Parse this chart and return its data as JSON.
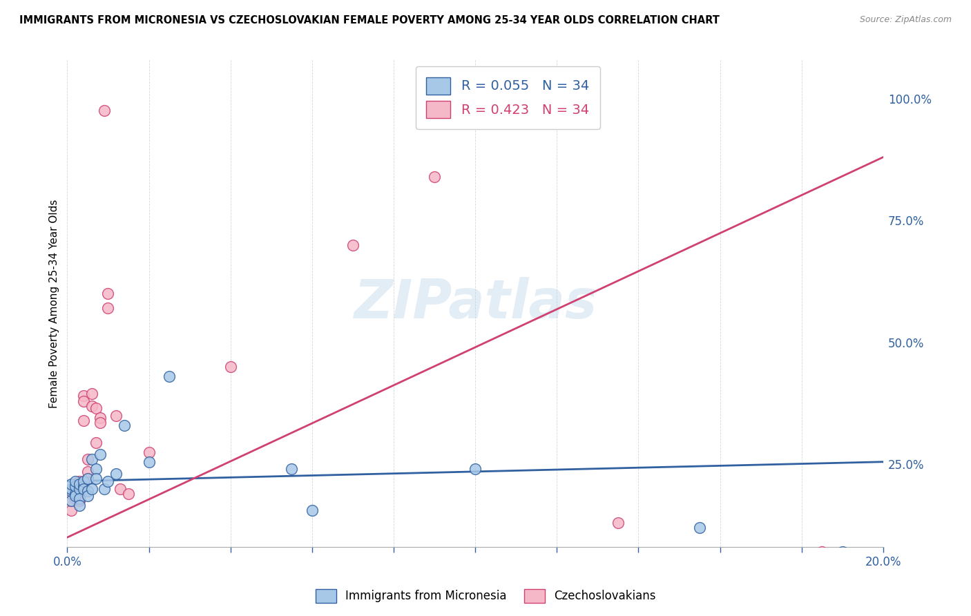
{
  "title": "IMMIGRANTS FROM MICRONESIA VS CZECHOSLOVAKIAN FEMALE POVERTY AMONG 25-34 YEAR OLDS CORRELATION CHART",
  "source": "Source: ZipAtlas.com",
  "ylabel": "Female Poverty Among 25-34 Year Olds",
  "legend1_label": "Immigrants from Micronesia",
  "legend2_label": "Czechoslovakians",
  "r1": 0.055,
  "n1": 34,
  "r2": 0.423,
  "n2": 34,
  "blue_color": "#a8c8e8",
  "pink_color": "#f5b8c8",
  "blue_line_color": "#3060a0",
  "pink_line_color": "#d04070",
  "watermark": "ZIPatlas",
  "blue_x": [
    0.001,
    0.001,
    0.001,
    0.001,
    0.002,
    0.002,
    0.002,
    0.002,
    0.003,
    0.003,
    0.003,
    0.003,
    0.004,
    0.004,
    0.004,
    0.005,
    0.005,
    0.005,
    0.006,
    0.006,
    0.007,
    0.007,
    0.008,
    0.009,
    0.01,
    0.012,
    0.014,
    0.02,
    0.025,
    0.055,
    0.06,
    0.1,
    0.155,
    0.19
  ],
  "blue_y": [
    0.195,
    0.2,
    0.21,
    0.175,
    0.19,
    0.205,
    0.185,
    0.215,
    0.2,
    0.21,
    0.18,
    0.165,
    0.205,
    0.215,
    0.2,
    0.22,
    0.195,
    0.185,
    0.26,
    0.2,
    0.24,
    0.22,
    0.27,
    0.2,
    0.215,
    0.23,
    0.33,
    0.255,
    0.43,
    0.24,
    0.155,
    0.24,
    0.12,
    0.07
  ],
  "pink_x": [
    0.001,
    0.001,
    0.001,
    0.002,
    0.002,
    0.002,
    0.003,
    0.003,
    0.003,
    0.003,
    0.004,
    0.004,
    0.004,
    0.005,
    0.005,
    0.005,
    0.006,
    0.006,
    0.007,
    0.007,
    0.008,
    0.008,
    0.009,
    0.01,
    0.01,
    0.012,
    0.013,
    0.015,
    0.02,
    0.04,
    0.07,
    0.09,
    0.135,
    0.185
  ],
  "pink_y": [
    0.155,
    0.175,
    0.19,
    0.18,
    0.195,
    0.21,
    0.2,
    0.215,
    0.175,
    0.185,
    0.34,
    0.39,
    0.38,
    0.22,
    0.235,
    0.26,
    0.395,
    0.37,
    0.365,
    0.295,
    0.345,
    0.335,
    0.975,
    0.57,
    0.6,
    0.35,
    0.2,
    0.19,
    0.275,
    0.45,
    0.7,
    0.84,
    0.13,
    0.07
  ],
  "xlim": [
    0.0,
    0.2
  ],
  "ylim": [
    0.08,
    1.08
  ],
  "right_yticks": [
    0.25,
    0.5,
    0.75,
    1.0
  ],
  "right_yticklabels": [
    "25.0%",
    "50.0%",
    "75.0%",
    "100.0%"
  ],
  "blue_line_endpoints": [
    [
      0.0,
      0.215
    ],
    [
      0.2,
      0.255
    ]
  ],
  "pink_line_endpoints": [
    [
      0.0,
      0.1
    ],
    [
      0.2,
      0.88
    ]
  ]
}
